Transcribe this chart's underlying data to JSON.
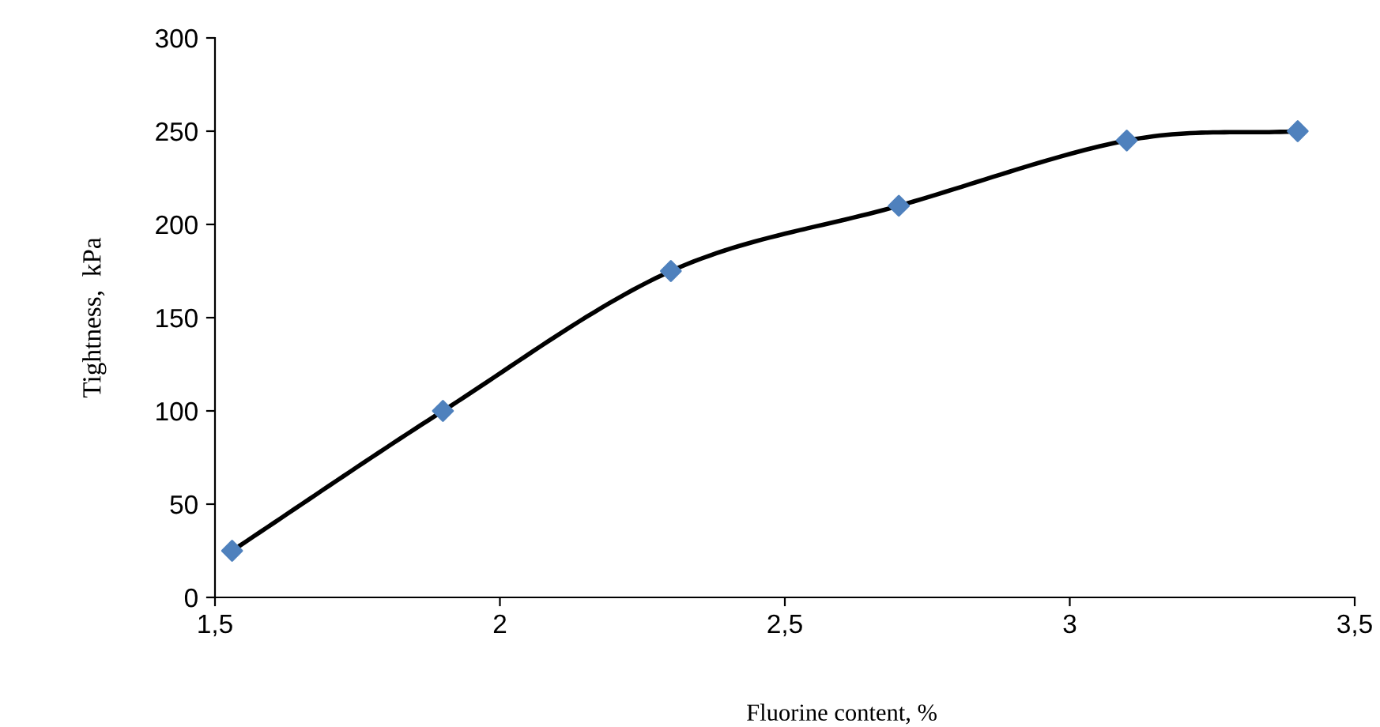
{
  "chart_data": {
    "type": "line",
    "xlabel": "Fluorine content, %",
    "ylabel": "Tightness,  kPa",
    "x": [
      1.53,
      1.9,
      2.3,
      2.7,
      3.1,
      3.4
    ],
    "series": [
      {
        "color": "#000000",
        "marker": "none",
        "values": [
          25,
          100,
          175,
          210,
          245,
          250
        ]
      },
      {
        "type": "scatter",
        "color": "#4f81bd",
        "marker": "diamond",
        "values": [
          25,
          100,
          175,
          210,
          245,
          250
        ]
      }
    ],
    "xlim": [
      1.5,
      3.5
    ],
    "ylim": [
      0,
      300
    ],
    "xticks": [
      {
        "value": 1.5,
        "label": "1,5"
      },
      2,
      {
        "value": 2.5,
        "label": "2,5"
      },
      3,
      {
        "value": 3.5,
        "label": "3,5"
      }
    ],
    "yticks": [
      0,
      50,
      100,
      150,
      200,
      250,
      300
    ],
    "grid": false,
    "legend": false
  }
}
